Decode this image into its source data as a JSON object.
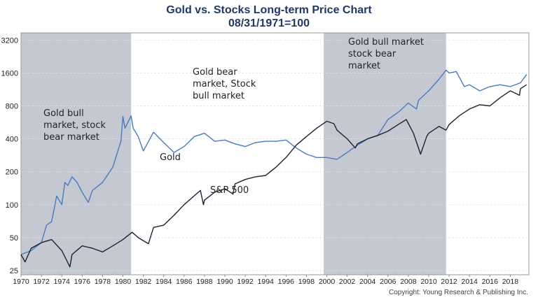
{
  "chart_data": {
    "type": "line",
    "title": "Gold vs. Stocks Long-term Price Chart",
    "subtitle": "08/31/1971=100",
    "y_scale": "log2",
    "ylim": [
      23,
      3500
    ],
    "xlim": [
      1970,
      2019.7
    ],
    "y_ticks": [
      25,
      50,
      100,
      200,
      400,
      800,
      1600,
      3200
    ],
    "x_ticks": [
      1970,
      1972,
      1974,
      1976,
      1978,
      1980,
      1982,
      1984,
      1986,
      1988,
      1990,
      1992,
      1994,
      1996,
      1998,
      2000,
      2002,
      2004,
      2006,
      2008,
      2010,
      2012,
      2014,
      2016,
      2018
    ],
    "grid": "horizontal",
    "shaded_periods": [
      [
        1970,
        1980.8
      ],
      [
        1999.7,
        2011.7
      ]
    ],
    "series": [
      {
        "name": "Gold",
        "color": "#4a7bbf",
        "x": [
          1970,
          1971,
          1972,
          1972.5,
          1973,
          1973.5,
          1974,
          1974.3,
          1974.6,
          1975,
          1975.5,
          1976,
          1976.6,
          1977,
          1978,
          1979,
          1979.8,
          1980,
          1980.2,
          1980.8,
          1981,
          1981.5,
          1982,
          1983,
          1984,
          1985,
          1986,
          1987,
          1988,
          1989,
          1990,
          1991,
          1992,
          1993,
          1994,
          1995,
          1996,
          1997,
          1998,
          1999,
          2000,
          2001,
          2002,
          2003,
          2004,
          2005,
          2006,
          2007,
          2008,
          2008.8,
          2009,
          2010,
          2011,
          2011.7,
          2012,
          2012.7,
          2013.5,
          2014,
          2015,
          2016,
          2017,
          2018,
          2019,
          2019.6
        ],
        "y": [
          35,
          38,
          45,
          65,
          70,
          120,
          100,
          160,
          150,
          180,
          160,
          130,
          105,
          135,
          160,
          220,
          380,
          640,
          500,
          650,
          500,
          420,
          310,
          460,
          370,
          300,
          340,
          420,
          450,
          380,
          390,
          360,
          340,
          370,
          380,
          380,
          390,
          330,
          290,
          270,
          270,
          260,
          300,
          350,
          400,
          430,
          600,
          700,
          850,
          750,
          900,
          1100,
          1400,
          1700,
          1600,
          1650,
          1200,
          1250,
          1100,
          1200,
          1250,
          1200,
          1300,
          1550
        ]
      },
      {
        "name": "S&P 500",
        "color": "#1c2233",
        "x": [
          1970,
          1970.4,
          1971,
          1972,
          1973,
          1974,
          1974.8,
          1975,
          1976,
          1977,
          1978,
          1979,
          1980,
          1980.9,
          1981.5,
          1982.5,
          1983,
          1984,
          1985,
          1986,
          1987.6,
          1987.9,
          1988,
          1989,
          1990,
          1990.8,
          1991,
          1992,
          1993,
          1994,
          1995,
          1996,
          1997,
          1998,
          1999,
          2000,
          2000.7,
          2001,
          2002,
          2002.8,
          2003,
          2004,
          2005,
          2006,
          2007,
          2007.8,
          2008.5,
          2009.2,
          2009.8,
          2010,
          2011,
          2011.7,
          2012,
          2013,
          2014,
          2015,
          2016,
          2017,
          2018,
          2018.9,
          2019,
          2019.6
        ],
        "y": [
          35,
          30,
          40,
          45,
          48,
          38,
          27,
          35,
          42,
          40,
          37,
          42,
          48,
          56,
          50,
          44,
          62,
          65,
          80,
          100,
          135,
          100,
          110,
          130,
          140,
          125,
          155,
          170,
          180,
          185,
          220,
          270,
          350,
          420,
          500,
          580,
          550,
          480,
          400,
          330,
          360,
          400,
          430,
          470,
          540,
          600,
          450,
          290,
          420,
          450,
          520,
          480,
          540,
          650,
          750,
          820,
          800,
          950,
          1100,
          1000,
          1150,
          1250
        ]
      }
    ],
    "annotations": [
      {
        "text": "Gold bull market, stock bear market"
      },
      {
        "text": "Gold bear market, Stock bull market"
      },
      {
        "text": "Gold bull market stock bear market"
      },
      {
        "text": "Gold"
      },
      {
        "text": "S&P 500"
      }
    ]
  },
  "copyright": "Copyright: Young Research & Publishing Inc."
}
